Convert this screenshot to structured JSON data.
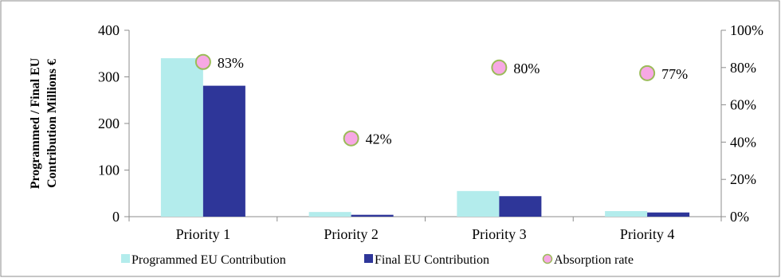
{
  "chart_data": {
    "type": "bar",
    "categories": [
      "Priority 1",
      "Priority 2",
      "Priority 3",
      "Priority 4"
    ],
    "series": [
      {
        "name": "Programmed EU Contribution",
        "kind": "bar",
        "axis": "left",
        "color": "#b3ecec",
        "values": [
          340,
          10,
          55,
          12
        ]
      },
      {
        "name": "Final EU Contribution",
        "kind": "bar",
        "axis": "left",
        "color": "#2e3699",
        "values": [
          281,
          4,
          44,
          9
        ]
      },
      {
        "name": "Absorption rate",
        "kind": "scatter",
        "axis": "right",
        "color": "#f7a8e4",
        "edge_color": "#9bbb59",
        "values": [
          0.83,
          0.42,
          0.8,
          0.77
        ],
        "labels": [
          "83%",
          "42%",
          "80%",
          "77%"
        ]
      }
    ],
    "y_left": {
      "label_lines": [
        "Programmed / Final EU",
        "Contribution Millions €"
      ],
      "ylim": [
        0,
        400
      ],
      "ticks": [
        0,
        100,
        200,
        300,
        400
      ],
      "tick_labels": [
        "0",
        "100",
        "200",
        "300",
        "400"
      ]
    },
    "y_right": {
      "ylim": [
        0,
        1
      ],
      "ticks": [
        0,
        0.2,
        0.4,
        0.6,
        0.8,
        1.0
      ],
      "tick_labels": [
        "0%",
        "20%",
        "40%",
        "60%",
        "80%",
        "100%"
      ]
    },
    "grid": false,
    "legend": {
      "position": "bottom"
    }
  }
}
